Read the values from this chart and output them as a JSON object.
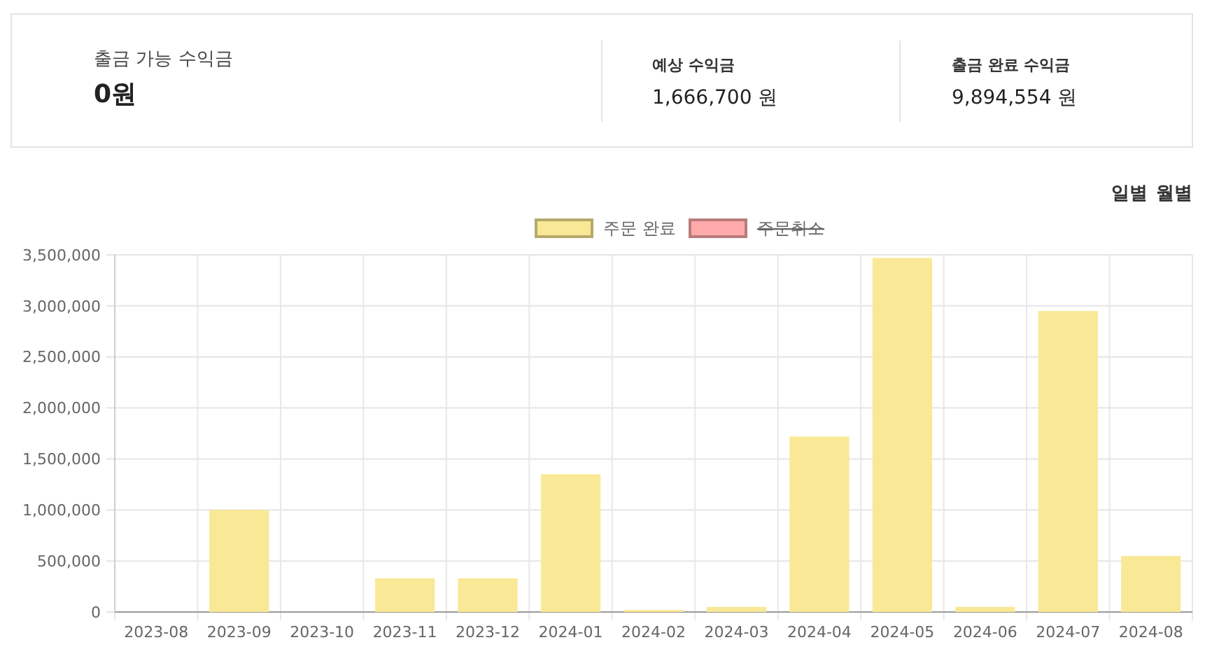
{
  "chart_data": [
    {
      "type": "other",
      "title": "출금 가능 수익금",
      "annotations": [
        "0원",
        "예상 수익금",
        "1,666,700 원",
        "출금 완료 수익금",
        "9,894,554 원"
      ]
    },
    {
      "type": "bar",
      "annotations": [
        "일별",
        "월별"
      ],
      "categories": [
        "2023-08",
        "2023-09",
        "2023-10",
        "2023-11",
        "2023-12",
        "2024-01",
        "2024-02",
        "2024-03",
        "2024-04",
        "2024-05",
        "2024-06",
        "2024-07",
        "2024-08"
      ],
      "series": [
        {
          "name": "주문 완료",
          "color": "#f9e996",
          "values": [
            0,
            1000000,
            0,
            330000,
            330000,
            1350000,
            20000,
            50000,
            1720000,
            3470000,
            50000,
            2950000,
            550000
          ]
        },
        {
          "name": "주문취소",
          "color": "#ffaaaa",
          "values": [
            null,
            null,
            null,
            null,
            null,
            null,
            null,
            null,
            null,
            null,
            null,
            null,
            null
          ]
        }
      ],
      "ylim": [
        0,
        3500000
      ],
      "yticks": [
        {
          "value": 0,
          "label": "0"
        },
        {
          "value": 500000,
          "label": "500,000"
        },
        {
          "value": 1000000,
          "label": "1,000,000"
        },
        {
          "value": 1500000,
          "label": "1,500,000"
        },
        {
          "value": 2000000,
          "label": "2,000,000"
        },
        {
          "value": 2500000,
          "label": "2,500,000"
        },
        {
          "value": 3000000,
          "label": "3,000,000"
        },
        {
          "value": 3500000,
          "label": "3,500,000"
        }
      ],
      "grid": true,
      "legend": "top"
    }
  ]
}
